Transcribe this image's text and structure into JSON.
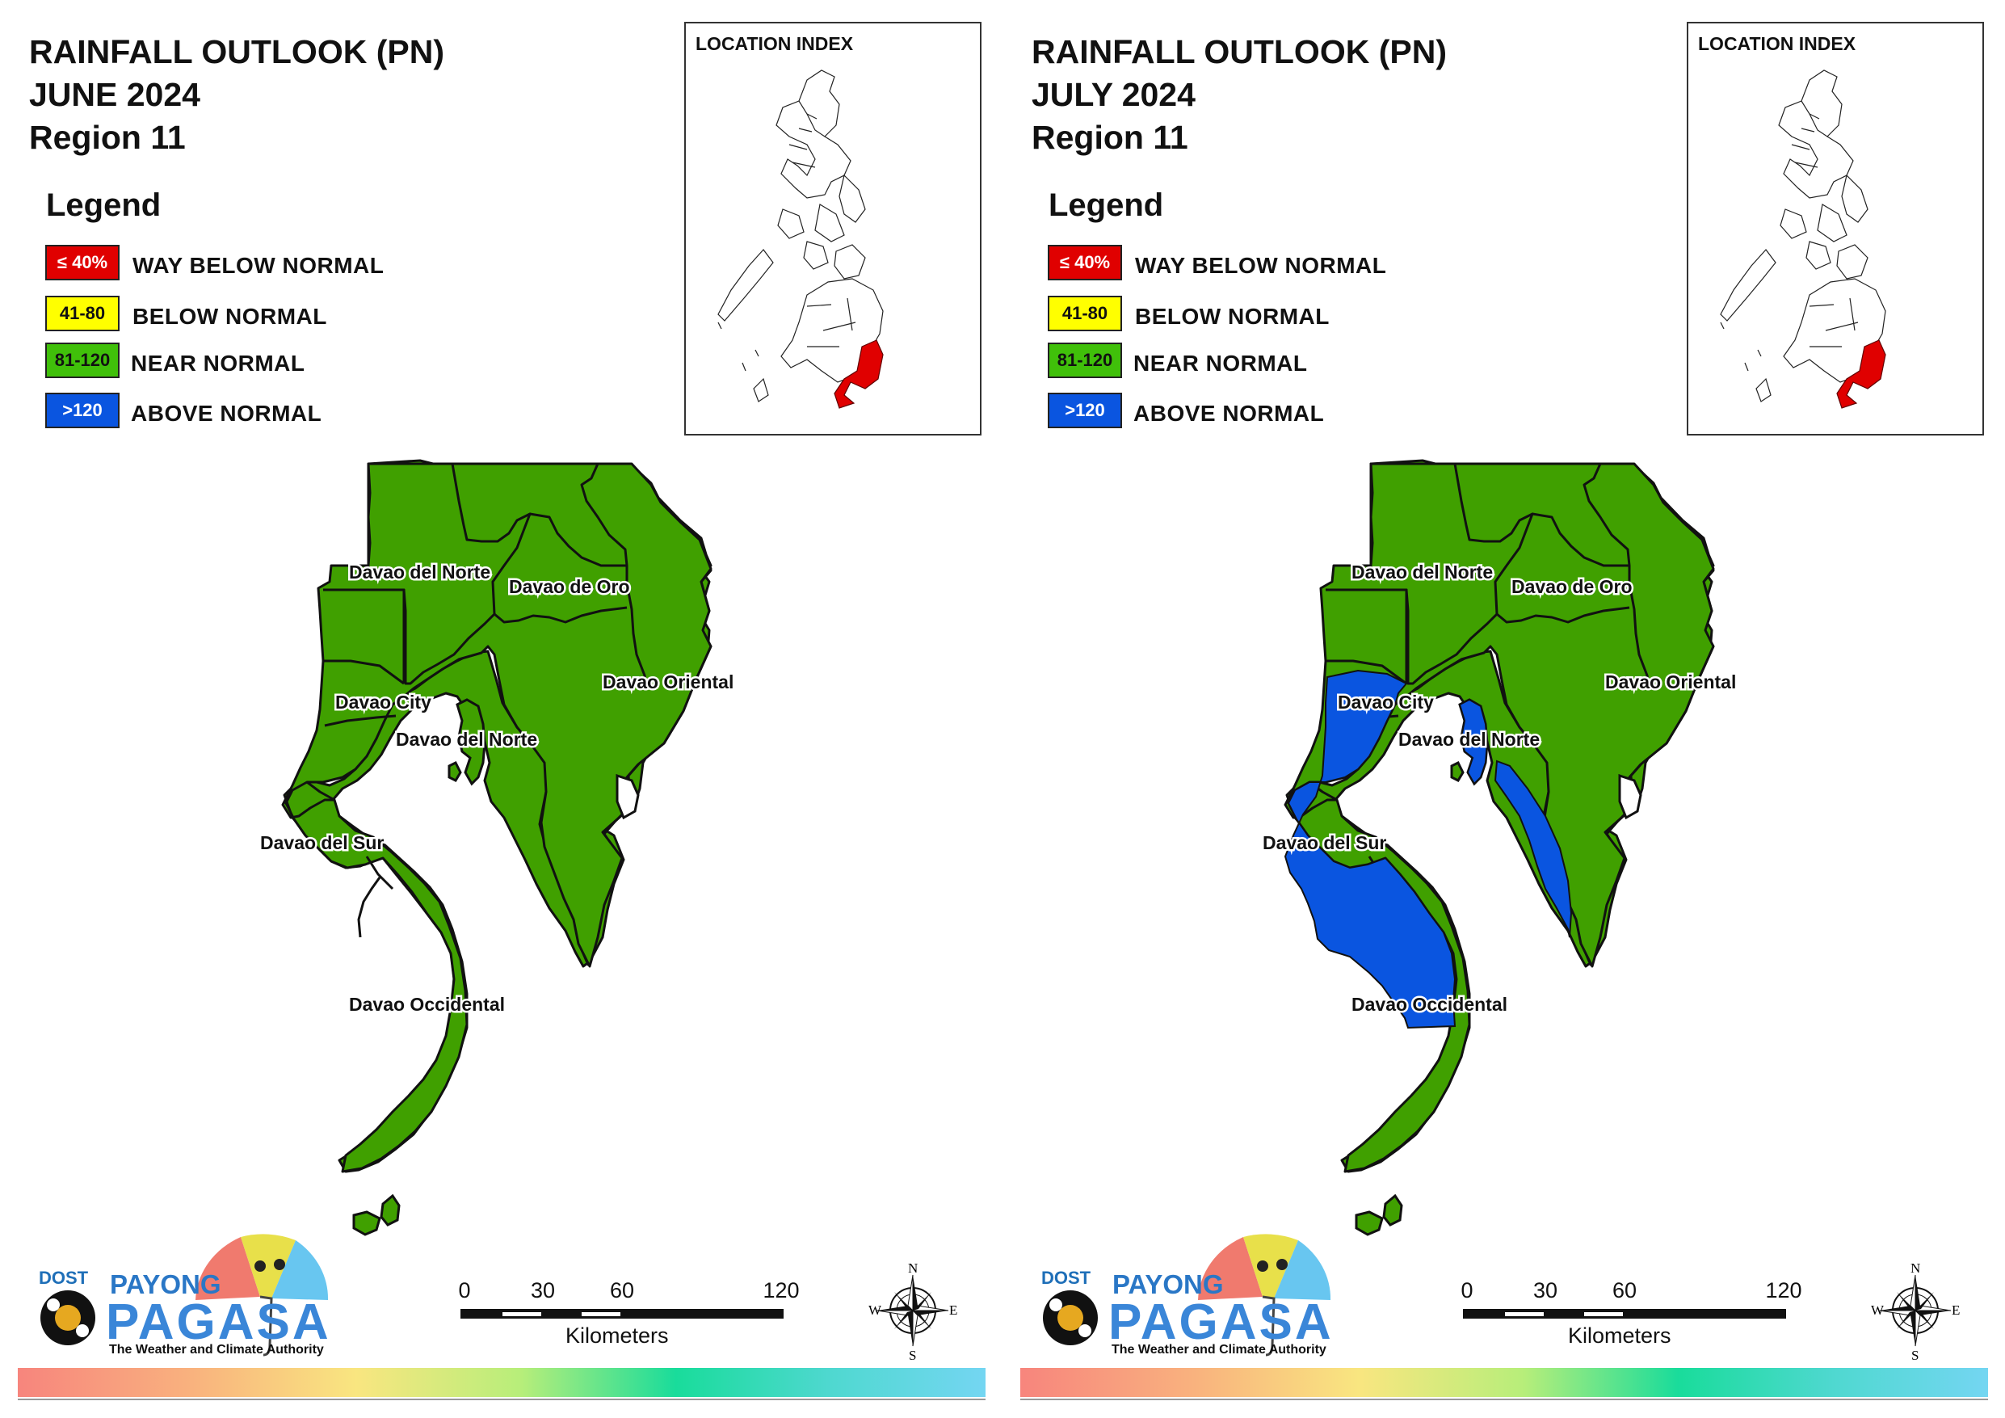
{
  "panels": [
    {
      "title_lines": [
        "RAINFALL OUTLOOK (PN)",
        "JUNE 2024",
        "Region 11"
      ],
      "legend": {
        "title": "Legend",
        "items": [
          {
            "code": "≤ 40%",
            "label": "WAY BELOW NORMAL",
            "color": "#e00000"
          },
          {
            "code": "41-80",
            "label": "BELOW NORMAL",
            "color": "#ffff00"
          },
          {
            "code": "81-120",
            "label": "NEAR NORMAL",
            "color": "#40c00a"
          },
          {
            "code": ">120",
            "label": "ABOVE NORMAL",
            "color": "#0a55e0"
          }
        ]
      },
      "location_index": {
        "title": "LOCATION INDEX"
      },
      "map_labels": [
        "Davao del Norte",
        "Davao de Oro",
        "Davao City",
        "Davao del Norte",
        "Davao Oriental",
        "Davao del Sur",
        "Davao Occidental"
      ],
      "scale": {
        "ticks": [
          "0",
          "30",
          "60",
          "120"
        ],
        "unit": "Kilometers"
      },
      "compass": {
        "n": "N",
        "s": "S",
        "e": "E",
        "w": "W"
      },
      "logo": {
        "dost": "DOST",
        "payong": "PAYONG",
        "pagasa": "PAGASA",
        "tagline": "The Weather and Climate Authority"
      },
      "above_normal_areas": []
    },
    {
      "title_lines": [
        "RAINFALL OUTLOOK (PN)",
        "JULY 2024",
        "Region 11"
      ],
      "legend": {
        "title": "Legend",
        "items": [
          {
            "code": "≤ 40%",
            "label": "WAY BELOW NORMAL",
            "color": "#e00000"
          },
          {
            "code": "41-80",
            "label": "BELOW NORMAL",
            "color": "#ffff00"
          },
          {
            "code": "81-120",
            "label": "NEAR NORMAL",
            "color": "#40c00a"
          },
          {
            "code": ">120",
            "label": "ABOVE NORMAL",
            "color": "#0a55e0"
          }
        ]
      },
      "location_index": {
        "title": "LOCATION INDEX"
      },
      "map_labels": [
        "Davao del Norte",
        "Davao de Oro",
        "Davao City",
        "Davao del Norte",
        "Davao Oriental",
        "Davao del Sur",
        "Davao Occidental"
      ],
      "scale": {
        "ticks": [
          "0",
          "30",
          "60",
          "120"
        ],
        "unit": "Kilometers"
      },
      "compass": {
        "n": "N",
        "s": "S",
        "e": "E",
        "w": "W"
      },
      "logo": {
        "dost": "DOST",
        "payong": "PAYONG",
        "pagasa": "PAGASA",
        "tagline": "The Weather and Climate Authority"
      },
      "above_normal_areas": [
        "Davao City",
        "Davao del Norte (Samal)",
        "Davao del Sur",
        "Davao Occidental (north)",
        "Davao Oriental (southwest coast)"
      ]
    }
  ],
  "colors": {
    "near_normal": "#40a000",
    "above_normal": "#0a55e0",
    "index_highlight": "#e00000"
  }
}
